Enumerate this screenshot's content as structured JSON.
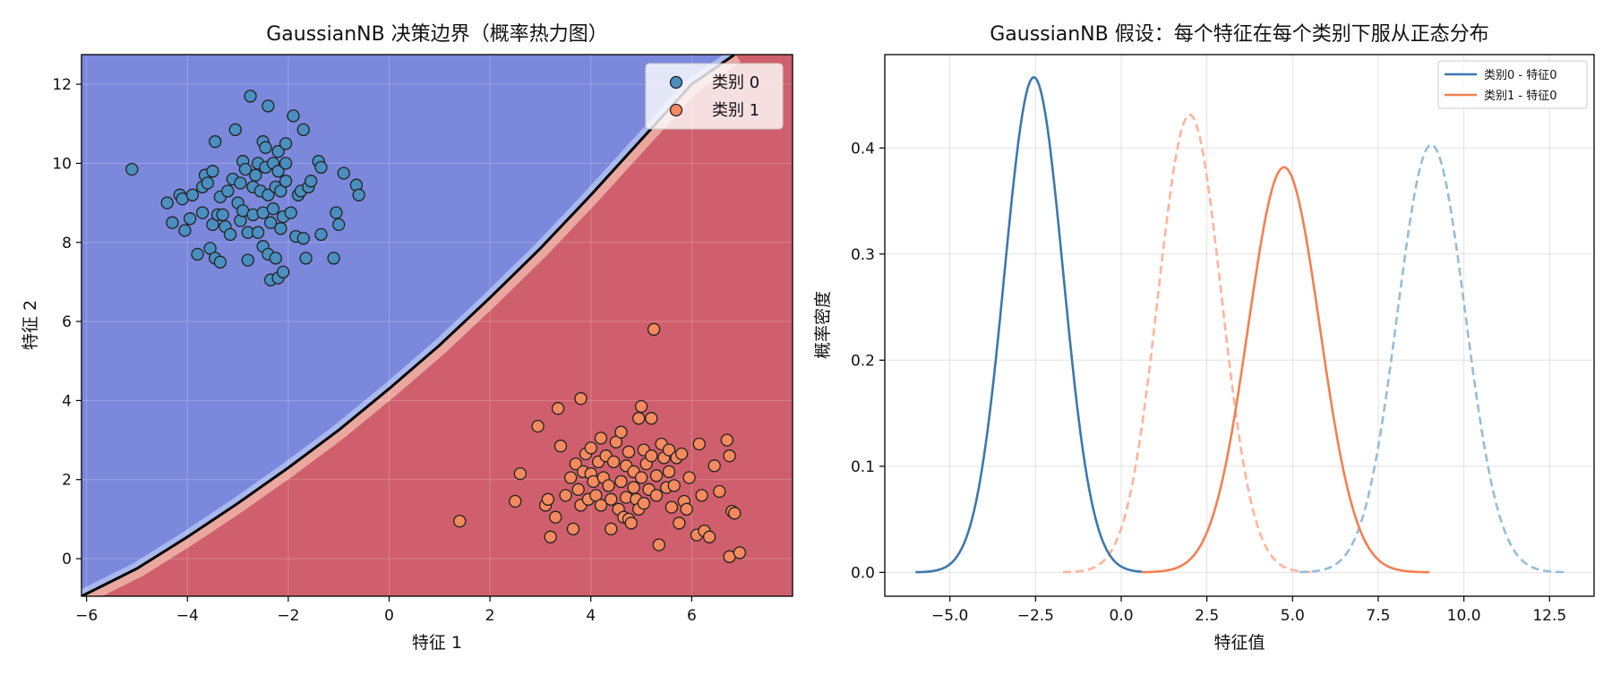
{
  "chart_data": [
    {
      "type": "scatter",
      "title": "GaussianNB 决策边界（概率热力图）",
      "xlabel": "特征 1",
      "ylabel": "特征 2",
      "xlim": [
        -6.1,
        8.0
      ],
      "ylim": [
        -0.95,
        12.75
      ],
      "xticks": [
        "−6",
        "−4",
        "−2",
        "0",
        "2",
        "4",
        "6"
      ],
      "xtick_values": [
        -6,
        -4,
        -2,
        0,
        2,
        4,
        6
      ],
      "yticks": [
        "0",
        "2",
        "4",
        "6",
        "8",
        "10",
        "12"
      ],
      "ytick_values": [
        0,
        2,
        4,
        6,
        8,
        10,
        12
      ],
      "grid": true,
      "legend_position": "top-right",
      "background": "probability heatmap: blue region = 类别 0, red region = 类别 1, black decision boundary line",
      "decision_boundary": {
        "x": [
          -6.1,
          -5,
          -4,
          -3,
          -2,
          -1,
          0,
          1,
          2,
          3,
          4,
          5,
          6,
          6.85
        ],
        "y": [
          -0.95,
          -0.25,
          0.55,
          1.4,
          2.3,
          3.25,
          4.3,
          5.4,
          6.6,
          7.85,
          9.2,
          10.6,
          12.0,
          12.75
        ]
      },
      "colors": {
        "region0": "#7b88dc",
        "region1": "#cf5f6c",
        "class0": "#4a8fc0",
        "class1": "#f58a5f",
        "edge": "#222222",
        "boundary": "#000000"
      },
      "series": [
        {
          "name": "类别 0",
          "points": [
            [
              -5.1,
              9.85
            ],
            [
              -4.4,
              9.0
            ],
            [
              -4.3,
              8.5
            ],
            [
              -4.15,
              9.2
            ],
            [
              -4.1,
              9.1
            ],
            [
              -4.05,
              8.3
            ],
            [
              -3.95,
              8.6
            ],
            [
              -3.9,
              9.2
            ],
            [
              -3.8,
              7.7
            ],
            [
              -3.7,
              9.4
            ],
            [
              -3.7,
              8.75
            ],
            [
              -3.65,
              9.7
            ],
            [
              -3.6,
              9.5
            ],
            [
              -3.55,
              7.85
            ],
            [
              -3.5,
              8.45
            ],
            [
              -3.5,
              9.8
            ],
            [
              -3.45,
              7.6
            ],
            [
              -3.45,
              10.55
            ],
            [
              -3.4,
              8.7
            ],
            [
              -3.35,
              9.15
            ],
            [
              -3.35,
              7.5
            ],
            [
              -3.3,
              8.7
            ],
            [
              -3.25,
              8.4
            ],
            [
              -3.2,
              9.3
            ],
            [
              -3.15,
              8.2
            ],
            [
              -3.1,
              9.6
            ],
            [
              -3.05,
              10.85
            ],
            [
              -3.0,
              9.0
            ],
            [
              -2.95,
              8.55
            ],
            [
              -2.95,
              9.5
            ],
            [
              -2.9,
              8.8
            ],
            [
              -2.9,
              10.05
            ],
            [
              -2.85,
              9.85
            ],
            [
              -2.8,
              7.55
            ],
            [
              -2.8,
              8.25
            ],
            [
              -2.75,
              11.7
            ],
            [
              -2.7,
              9.4
            ],
            [
              -2.7,
              8.7
            ],
            [
              -2.65,
              9.7
            ],
            [
              -2.6,
              8.25
            ],
            [
              -2.6,
              10.0
            ],
            [
              -2.55,
              9.3
            ],
            [
              -2.5,
              10.55
            ],
            [
              -2.5,
              7.9
            ],
            [
              -2.5,
              8.75
            ],
            [
              -2.45,
              9.9
            ],
            [
              -2.45,
              10.4
            ],
            [
              -2.4,
              7.7
            ],
            [
              -2.4,
              9.2
            ],
            [
              -2.4,
              11.45
            ],
            [
              -2.35,
              8.5
            ],
            [
              -2.35,
              7.05
            ],
            [
              -2.3,
              10.0
            ],
            [
              -2.3,
              8.85
            ],
            [
              -2.25,
              7.6
            ],
            [
              -2.25,
              9.4
            ],
            [
              -2.2,
              9.8
            ],
            [
              -2.2,
              10.3
            ],
            [
              -2.2,
              7.1
            ],
            [
              -2.15,
              8.35
            ],
            [
              -2.15,
              9.3
            ],
            [
              -2.1,
              8.65
            ],
            [
              -2.1,
              7.25
            ],
            [
              -2.05,
              9.55
            ],
            [
              -2.05,
              10.0
            ],
            [
              -2.05,
              10.5
            ],
            [
              -1.95,
              8.75
            ],
            [
              -1.9,
              11.2
            ],
            [
              -1.85,
              8.15
            ],
            [
              -1.8,
              9.2
            ],
            [
              -1.75,
              9.3
            ],
            [
              -1.7,
              10.85
            ],
            [
              -1.7,
              8.1
            ],
            [
              -1.65,
              7.6
            ],
            [
              -1.6,
              9.4
            ],
            [
              -1.55,
              9.55
            ],
            [
              -1.4,
              10.05
            ],
            [
              -1.35,
              9.9
            ],
            [
              -1.35,
              8.2
            ],
            [
              -1.1,
              7.6
            ],
            [
              -1.05,
              8.75
            ],
            [
              -1.0,
              8.45
            ],
            [
              -0.9,
              9.75
            ],
            [
              -0.65,
              9.45
            ],
            [
              -0.6,
              9.2
            ]
          ]
        },
        {
          "name": "类别 1",
          "points": [
            [
              1.4,
              0.95
            ],
            [
              2.5,
              1.45
            ],
            [
              2.6,
              2.15
            ],
            [
              2.95,
              3.35
            ],
            [
              3.1,
              1.35
            ],
            [
              3.15,
              1.5
            ],
            [
              3.2,
              0.55
            ],
            [
              3.3,
              1.05
            ],
            [
              3.35,
              3.8
            ],
            [
              3.4,
              2.85
            ],
            [
              3.5,
              1.6
            ],
            [
              3.6,
              2.05
            ],
            [
              3.65,
              0.75
            ],
            [
              3.7,
              2.4
            ],
            [
              3.75,
              1.75
            ],
            [
              3.8,
              1.35
            ],
            [
              3.8,
              4.05
            ],
            [
              3.85,
              2.2
            ],
            [
              3.9,
              2.65
            ],
            [
              3.95,
              1.5
            ],
            [
              4.0,
              2.15
            ],
            [
              4.0,
              2.8
            ],
            [
              4.05,
              1.95
            ],
            [
              4.1,
              1.6
            ],
            [
              4.15,
              2.45
            ],
            [
              4.2,
              1.35
            ],
            [
              4.2,
              3.05
            ],
            [
              4.25,
              2.05
            ],
            [
              4.3,
              2.6
            ],
            [
              4.35,
              1.85
            ],
            [
              4.4,
              0.75
            ],
            [
              4.4,
              1.5
            ],
            [
              4.45,
              2.45
            ],
            [
              4.5,
              2.95
            ],
            [
              4.55,
              1.25
            ],
            [
              4.6,
              3.2
            ],
            [
              4.6,
              1.95
            ],
            [
              4.65,
              1.05
            ],
            [
              4.7,
              2.35
            ],
            [
              4.7,
              1.55
            ],
            [
              4.75,
              1.0
            ],
            [
              4.75,
              2.7
            ],
            [
              4.8,
              0.9
            ],
            [
              4.85,
              1.8
            ],
            [
              4.85,
              2.2
            ],
            [
              4.9,
              1.5
            ],
            [
              4.95,
              1.25
            ],
            [
              4.95,
              3.55
            ],
            [
              5.0,
              2.05
            ],
            [
              5.0,
              3.85
            ],
            [
              5.05,
              1.4
            ],
            [
              5.05,
              2.75
            ],
            [
              5.1,
              2.4
            ],
            [
              5.15,
              1.75
            ],
            [
              5.2,
              3.55
            ],
            [
              5.2,
              2.6
            ],
            [
              5.25,
              5.8
            ],
            [
              5.3,
              1.6
            ],
            [
              5.3,
              2.1
            ],
            [
              5.35,
              0.35
            ],
            [
              5.4,
              2.9
            ],
            [
              5.45,
              2.55
            ],
            [
              5.5,
              1.8
            ],
            [
              5.55,
              2.2
            ],
            [
              5.55,
              2.75
            ],
            [
              5.6,
              1.3
            ],
            [
              5.65,
              1.85
            ],
            [
              5.7,
              2.55
            ],
            [
              5.75,
              0.9
            ],
            [
              5.8,
              2.65
            ],
            [
              5.85,
              1.45
            ],
            [
              5.9,
              1.25
            ],
            [
              5.95,
              2.05
            ],
            [
              6.1,
              0.6
            ],
            [
              6.15,
              2.9
            ],
            [
              6.2,
              1.6
            ],
            [
              6.25,
              0.7
            ],
            [
              6.35,
              0.55
            ],
            [
              6.45,
              2.35
            ],
            [
              6.55,
              1.7
            ],
            [
              6.7,
              3.0
            ],
            [
              6.75,
              2.6
            ],
            [
              6.75,
              0.05
            ],
            [
              6.8,
              1.2
            ],
            [
              6.85,
              1.15
            ],
            [
              6.95,
              0.15
            ]
          ]
        }
      ]
    },
    {
      "type": "line",
      "title": "GaussianNB 假设：每个特征在每个类别下服从正态分布",
      "xlabel": "特征值",
      "ylabel": "概率密度",
      "xlim": [
        -6.9,
        13.8
      ],
      "ylim": [
        -0.0225,
        0.488
      ],
      "xticks": [
        "−5.0",
        "−2.5",
        "0.0",
        "2.5",
        "5.0",
        "7.5",
        "10.0",
        "12.5"
      ],
      "xtick_values": [
        -5,
        -2.5,
        0,
        2.5,
        5,
        7.5,
        10,
        12.5
      ],
      "yticks": [
        "0.0",
        "0.1",
        "0.2",
        "0.3",
        "0.4"
      ],
      "ytick_values": [
        0,
        0.1,
        0.2,
        0.3,
        0.4
      ],
      "grid": true,
      "legend_position": "top-right",
      "series": [
        {
          "name": "类别0 - 特征0",
          "style": "solid",
          "color": "#3d78ad",
          "mean": -2.55,
          "std": 0.855,
          "range": [
            -6.0,
            0.6
          ]
        },
        {
          "name": "类别1 - 特征0",
          "style": "solid",
          "color": "#f47f50",
          "mean": 4.75,
          "std": 1.045,
          "range": [
            0.6,
            9.0
          ]
        },
        {
          "name": "",
          "style": "dashed",
          "color": "#ffb39b",
          "mean": 2.0,
          "std": 0.925,
          "range": [
            -1.7,
            5.7
          ]
        },
        {
          "name": "",
          "style": "dashed",
          "color": "#95bdda",
          "mean": 9.05,
          "std": 0.99,
          "range": [
            5.2,
            13.0
          ]
        }
      ]
    }
  ]
}
